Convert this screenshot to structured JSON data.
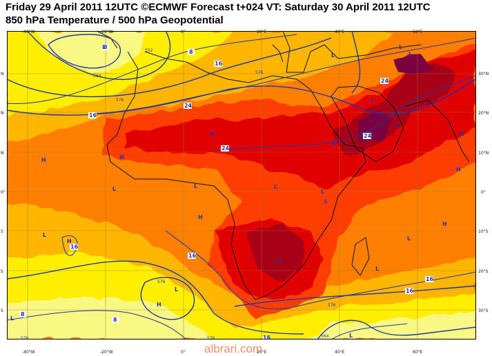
{
  "header": {
    "line1": "Friday 29 April 2011 12UTC ©ECMWF Forecast t+024 VT: Saturday 30 April 2011 12UTC",
    "line2": "850 hPa Temperature / 500 hPa Geopotential"
  },
  "axes": {
    "top_lon": [
      "-40°W",
      "-20°W",
      "0°",
      "20°E",
      "40°E",
      "60°E"
    ],
    "bottom_lon": [
      "-40°W",
      "-20°W",
      "0°",
      "20°E",
      "40°E",
      "60°E"
    ],
    "left_lat": [
      "N",
      "N",
      "N",
      "0°",
      "S",
      "S",
      "S"
    ],
    "right_lat": [
      "30°N",
      "20°N",
      "10°N",
      "0°",
      "10°S",
      "20°S",
      "30°S"
    ]
  },
  "contour_labels": {
    "temperature": [
      "8",
      "16",
      "24",
      "24",
      "24",
      "24",
      "16",
      "16",
      "16",
      "16",
      "8",
      "8",
      "8",
      "16",
      "16"
    ],
    "geopotential": [
      "552",
      "564",
      "576",
      "576",
      "576",
      "576",
      "576",
      "564",
      "576"
    ]
  },
  "pressure_centers": {
    "lows": [
      "L",
      "L",
      "L",
      "L",
      "L",
      "L",
      "L",
      "L",
      "L",
      "L",
      "L",
      "L",
      "L",
      "L",
      "L",
      "L",
      "L"
    ],
    "highs": [
      "H",
      "H",
      "H",
      "H",
      "H",
      "H",
      "H",
      "H",
      "H",
      "H",
      "H"
    ]
  },
  "colors": {
    "t_lt_8": "#f8f882",
    "t_8_12": "#ffee00",
    "t_12_16": "#ffb600",
    "t_16_20": "#ff7f00",
    "t_20_24": "#ff3c00",
    "t_24_28": "#e00000",
    "t_28_32": "#a80018",
    "t_32_plus": "#7a0040",
    "contour_line": "#2233aa",
    "coastline": "#111111"
  },
  "watermark": "albrari.com"
}
